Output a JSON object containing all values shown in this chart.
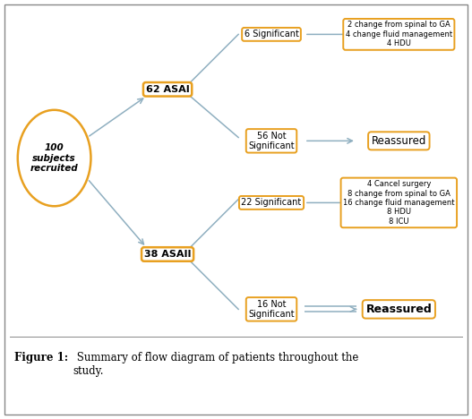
{
  "background_color": "#ffffff",
  "border_color": "#e8a020",
  "line_color": "#8fafc0",
  "caption_bold": "Figure 1:",
  "caption_rest": " Summary of flow diagram of patients throughout the\nstudy.",
  "root_text": "100\nsubjects\nrecruited",
  "asai_text": "62 ASAI",
  "asaii_text": "38 ASAII",
  "sig6_text": "6 Significant",
  "notsig56_text": "56 Not\nSignificant",
  "sig22_text": "22 Significant",
  "notsig16_text": "16 Not\nSignificant",
  "detail6_text": "2 change from spinal to GA\n4 change fluid management\n4 HDU",
  "reassured56_text": "Reassured",
  "detail22_text": "4 Cancel surgery\n8 change from spinal to GA\n16 change fluid management\n8 HDU\n8 ICU",
  "reassured16_text": "Reassured"
}
